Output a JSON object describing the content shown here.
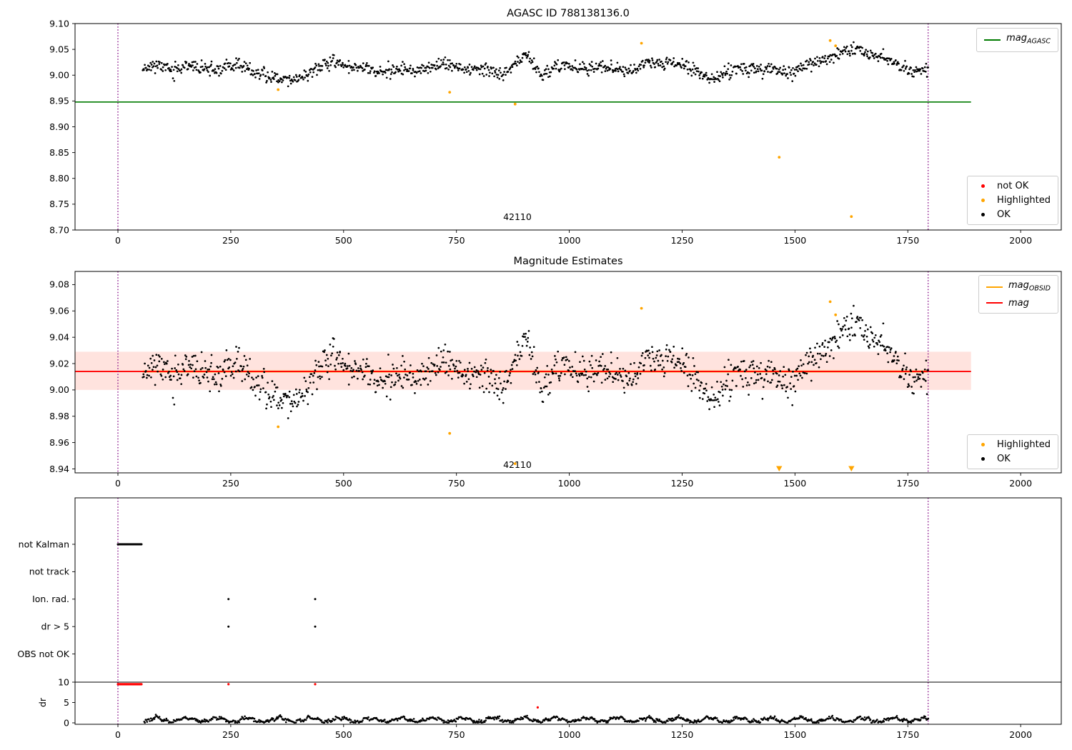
{
  "figure": {
    "background": "#ffffff",
    "colors": {
      "ok": "#000000",
      "not_ok": "#ff0000",
      "highlighted": "#ffa500",
      "mag_agasc_line": "#007a00",
      "mag_line": "#ff0000",
      "mag_obsid_line": "#ffa500",
      "band_fill": "rgba(255,60,20,0.14)",
      "vline": "#800080",
      "axis": "#000000"
    }
  },
  "chart_data": [
    {
      "type": "scatter",
      "title": "AGASC ID 788138136.0",
      "xlim": [
        -95,
        2090
      ],
      "ylim": [
        8.7,
        9.1
      ],
      "xticks": [
        0,
        250,
        500,
        750,
        1000,
        1250,
        1500,
        1750,
        2000
      ],
      "xtick_labels": [
        "0",
        "250",
        "500",
        "750",
        "1000",
        "1250",
        "1500",
        "1750",
        "2000"
      ],
      "yticks": [
        8.7,
        8.75,
        8.8,
        8.85,
        8.9,
        8.95,
        9.0,
        9.05,
        9.1
      ],
      "ytick_labels": [
        "8.70",
        "8.75",
        "8.80",
        "8.85",
        "8.90",
        "8.95",
        "9.00",
        "9.05",
        "9.10"
      ],
      "agasc_mag_line": {
        "y": 8.948,
        "x0": -95,
        "x1": 1890
      },
      "vlines": [
        0,
        1795
      ],
      "annotation": {
        "text": "42110",
        "x": 885,
        "y": 8.725
      },
      "highlighted_points": [
        [
          355,
          8.972
        ],
        [
          735,
          8.967
        ],
        [
          880,
          8.944
        ],
        [
          1160,
          9.062
        ],
        [
          1578,
          9.067
        ],
        [
          1590,
          9.057
        ],
        [
          1465,
          8.841
        ],
        [
          1625,
          8.726
        ]
      ],
      "ok_series": {
        "seed": 11,
        "x_start": 55,
        "x_end": 1795,
        "n": 1150,
        "jitter_x": 1.4,
        "base": 9.012,
        "noise": 0.0062,
        "waves": [
          {
            "amp": 0.005,
            "period": 230,
            "phase": 0.6
          },
          {
            "amp": 0.0038,
            "period": 91,
            "phase": 2.1
          }
        ],
        "bumps": [
          {
            "x": 900,
            "amp": 0.02,
            "width": 22
          },
          {
            "x": 360,
            "amp": -0.016,
            "width": 45
          },
          {
            "x": 1600,
            "amp": 0.022,
            "width": 75
          },
          {
            "x": 1660,
            "amp": 0.012,
            "width": 60
          },
          {
            "x": 1230,
            "amp": 0.012,
            "width": 28
          },
          {
            "x": 480,
            "amp": 0.011,
            "width": 16
          },
          {
            "x": 140,
            "amp": 0.009,
            "width": 28
          },
          {
            "x": 940,
            "amp": -0.013,
            "width": 16
          },
          {
            "x": 1320,
            "amp": -0.01,
            "width": 30
          },
          {
            "x": 1470,
            "amp": -0.011,
            "width": 40
          },
          {
            "x": 1050,
            "amp": 0.009,
            "width": 30
          }
        ],
        "clip": [
          8.974,
          9.066
        ]
      }
    },
    {
      "type": "scatter",
      "title": "Magnitude Estimates",
      "xlim": [
        -95,
        2090
      ],
      "ylim": [
        8.937,
        9.09
      ],
      "xticks": [
        0,
        250,
        500,
        750,
        1000,
        1250,
        1500,
        1750,
        2000
      ],
      "xtick_labels": [
        "0",
        "250",
        "500",
        "750",
        "1000",
        "1250",
        "1500",
        "1750",
        "2000"
      ],
      "yticks": [
        8.94,
        8.96,
        8.98,
        9.0,
        9.02,
        9.04,
        9.06,
        9.08
      ],
      "ytick_labels": [
        "8.94",
        "8.96",
        "8.98",
        "9.00",
        "9.02",
        "9.04",
        "9.06",
        "9.08"
      ],
      "mag_band": {
        "y0": 9.0,
        "y1": 9.029,
        "x0": -95,
        "x1": 1890
      },
      "mag_line": {
        "y": 9.014,
        "x0": -95,
        "x1": 1890
      },
      "obsid_line": {
        "y": 9.014,
        "x0": 55,
        "x1": 1795
      },
      "vlines": [
        0,
        1795
      ],
      "annotation": {
        "text": "42110",
        "x": 885,
        "y": 8.943
      },
      "highlighted_points": [
        [
          355,
          8.972
        ],
        [
          735,
          8.967
        ],
        [
          880,
          8.944
        ],
        [
          1160,
          9.062
        ],
        [
          1578,
          9.067
        ],
        [
          1590,
          9.057
        ],
        [
          1465,
          8.841
        ],
        [
          1625,
          8.726
        ]
      ],
      "reuses_series_of_chart": 0
    },
    {
      "type": "flags_dr",
      "title": "",
      "xlim": [
        -95,
        2090
      ],
      "xticks": [
        0,
        250,
        500,
        750,
        1000,
        1250,
        1500,
        1750,
        2000
      ],
      "xtick_labels": [
        "0",
        "250",
        "500",
        "750",
        "1000",
        "1250",
        "1500",
        "1750",
        "2000"
      ],
      "rows": [
        "not Kalman",
        "not track",
        "Ion. rad.",
        "dr > 5",
        "OBS not OK"
      ],
      "row_runs": [
        {
          "row": 0,
          "x0": 0,
          "x1": 53,
          "step": 1.8
        }
      ],
      "row_points": [
        {
          "row": 2,
          "x": 245
        },
        {
          "row": 2,
          "x": 437
        },
        {
          "row": 3,
          "x": 245
        },
        {
          "row": 3,
          "x": 437
        }
      ],
      "vlines": [
        0,
        1795
      ],
      "dr": {
        "ylabel": "dr",
        "ticks": [
          0,
          5,
          10
        ],
        "tick_labels": [
          "0",
          "5",
          "10"
        ],
        "hline_y": 10,
        "red_run": {
          "x0": 0,
          "x1": 53,
          "step": 1.8,
          "y": 9.5
        },
        "red_points": [
          [
            245,
            9.5
          ],
          [
            437,
            9.5
          ],
          [
            930,
            3.8
          ]
        ],
        "series": {
          "seed": 5,
          "x_start": 58,
          "x_end": 1795,
          "n": 1080,
          "jitter_x": 1.2,
          "base": 0.75,
          "noise": 0.2,
          "waves": [
            {
              "amp": 0.5,
              "period": 68,
              "phase": 0
            },
            {
              "amp": 0.22,
              "period": 21,
              "phase": 1.0
            }
          ],
          "abs": true,
          "clip": [
            0.05,
            2.9
          ]
        }
      }
    }
  ],
  "legends": {
    "chart1_top": {
      "items": [
        {
          "type": "line",
          "color": "#007a00",
          "main": "mag",
          "sub": "AGASC"
        }
      ]
    },
    "chart1_bottom": {
      "items": [
        {
          "type": "dot",
          "color": "#ff0000",
          "label": "not OK"
        },
        {
          "type": "dot",
          "color": "#ffa500",
          "label": "Highlighted"
        },
        {
          "type": "dot",
          "color": "#000000",
          "label": "OK"
        }
      ]
    },
    "chart2_top": {
      "items": [
        {
          "type": "line",
          "color": "#ffa500",
          "main": "mag",
          "sub": "OBSID"
        },
        {
          "type": "line",
          "color": "#ff0000",
          "main": "mag",
          "sub": ""
        }
      ]
    },
    "chart2_bottom": {
      "items": [
        {
          "type": "dot",
          "color": "#ffa500",
          "label": "Highlighted"
        },
        {
          "type": "dot",
          "color": "#000000",
          "label": "OK"
        }
      ]
    }
  }
}
